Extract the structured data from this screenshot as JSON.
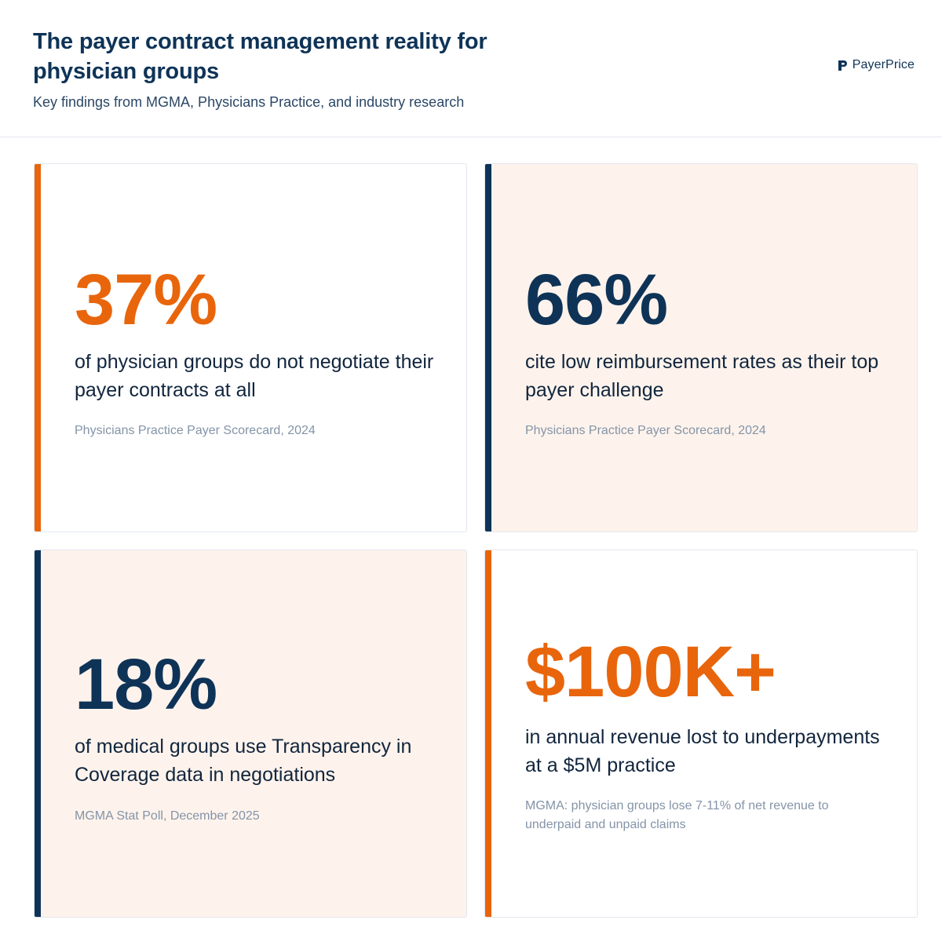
{
  "header": {
    "title": "The payer contract management reality for physician groups",
    "subtitle": "Key findings from MGMA, Physicians Practice, and industry research",
    "brand": "PayerPrice"
  },
  "colors": {
    "orange": "#e8650c",
    "navy": "#0e3357",
    "cream": "#fdf3ec"
  },
  "cards": [
    {
      "stat": "37%",
      "description": "of physician groups do not negotiate their payer contracts at all",
      "source": "Physicians Practice Payer Scorecard, 2024"
    },
    {
      "stat": "66%",
      "description": "cite low reimbursement rates as their top payer challenge",
      "source": "Physicians Practice Payer Scorecard, 2024"
    },
    {
      "stat": "18%",
      "description": "of medical groups use Transparency in Coverage data in negotiations",
      "source": "MGMA Stat Poll, December 2025"
    },
    {
      "stat": "$100K+",
      "description": "in annual revenue lost to underpayments at a $5M practice",
      "source": "MGMA: physician groups lose 7-11% of net revenue to underpaid and unpaid claims"
    }
  ]
}
